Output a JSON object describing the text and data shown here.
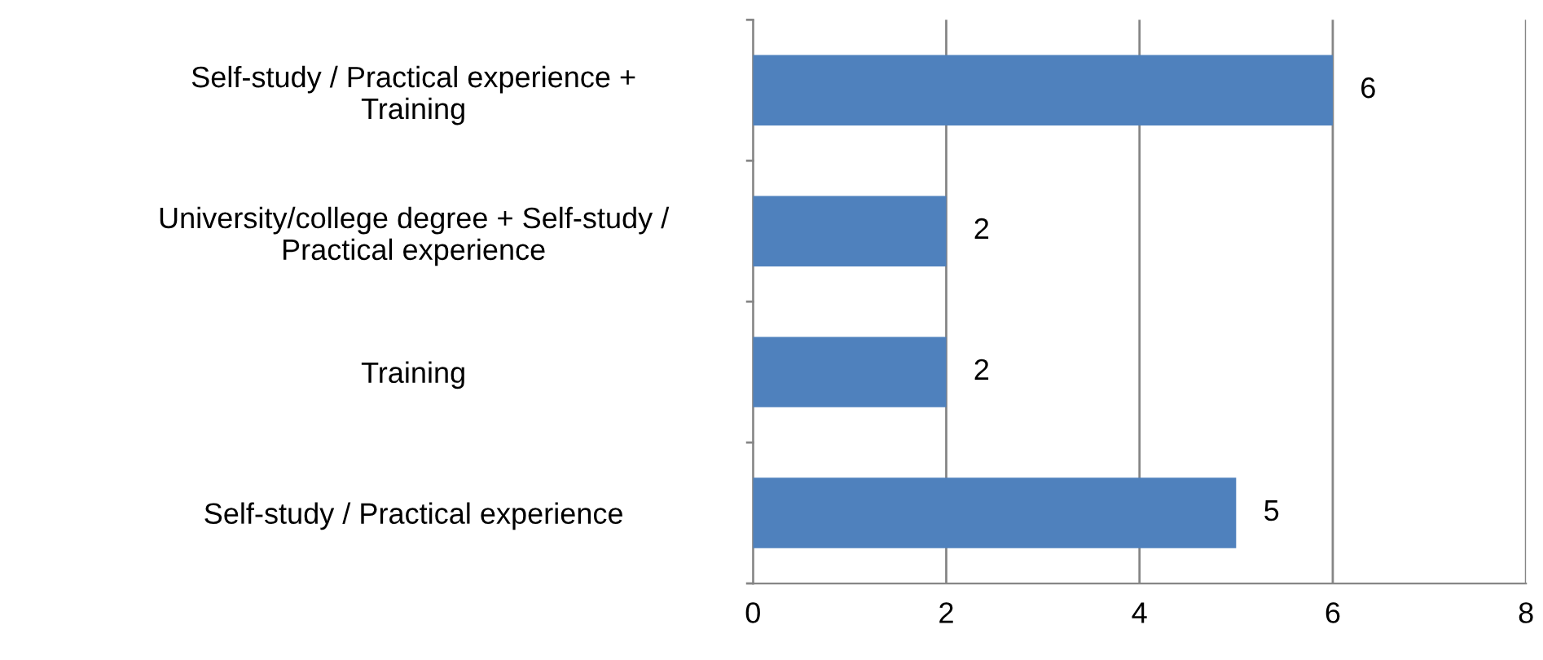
{
  "chart_data": {
    "type": "bar",
    "orientation": "horizontal",
    "categories": [
      "Self-study / Practical experience +\nTraining",
      "University/college degree + Self-study /\nPractical experience",
      "Training",
      "Self-study / Practical experience"
    ],
    "values": [
      6,
      2,
      2,
      5
    ],
    "color": "#4f81bd",
    "xlim": [
      0,
      8
    ],
    "xticks": [
      0,
      2,
      4,
      6,
      8
    ],
    "grid": "x",
    "data_labels": true,
    "legend": false
  }
}
